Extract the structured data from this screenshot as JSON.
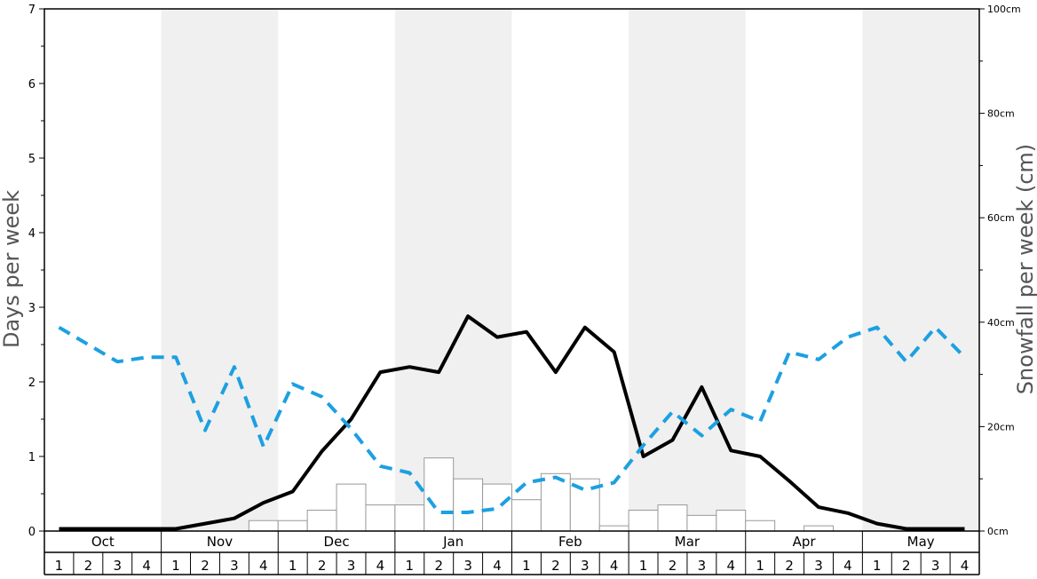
{
  "chart_data": {
    "type": "bar+line",
    "ylabel_left": "Days per week",
    "ylabel_right": "Snowfall per week (cm)",
    "ylim_left": [
      0,
      7
    ],
    "ylim_right": [
      0,
      100
    ],
    "left_ticks": [
      "0",
      "1",
      "2",
      "3",
      "4",
      "5",
      "6",
      "7"
    ],
    "right_ticks": [
      "0cm",
      "20cm",
      "40cm",
      "60cm",
      "80cm",
      "100cm"
    ],
    "months": [
      "Oct",
      "Nov",
      "Dec",
      "Jan",
      "Feb",
      "Mar",
      "Apr",
      "May"
    ],
    "week_labels": [
      "1",
      "2",
      "3",
      "4"
    ],
    "shaded_months": [
      "Nov",
      "Jan",
      "Mar",
      "May"
    ],
    "grid": false,
    "series": [
      {
        "kind": "bar",
        "axis": "right",
        "color": "#ffffff",
        "stroke": "#999999",
        "values": [
          0,
          0,
          0,
          0,
          0,
          0,
          0,
          2,
          2,
          4,
          9,
          5,
          5,
          14,
          10,
          9,
          6,
          11,
          10,
          1,
          4,
          5,
          3,
          4,
          2,
          0,
          1,
          0,
          0,
          0,
          0,
          0
        ]
      },
      {
        "kind": "line",
        "axis": "left",
        "color": "#000000",
        "style": "solid",
        "values": [
          0.03,
          0.03,
          0.03,
          0.03,
          0.03,
          0.1,
          0.17,
          0.38,
          0.53,
          1.07,
          1.5,
          2.13,
          2.2,
          2.13,
          2.88,
          2.6,
          2.67,
          2.13,
          2.73,
          2.4,
          1.0,
          1.22,
          1.93,
          1.08,
          1.0,
          0.67,
          0.32,
          0.24,
          0.1,
          0.03,
          0.03,
          0.03
        ]
      },
      {
        "kind": "line",
        "axis": "left",
        "color": "#1ca0e1",
        "style": "dashed",
        "values": [
          2.73,
          2.5,
          2.27,
          2.33,
          2.33,
          1.35,
          2.2,
          1.13,
          1.97,
          1.8,
          1.37,
          0.87,
          0.78,
          0.25,
          0.25,
          0.3,
          0.65,
          0.72,
          0.55,
          0.65,
          1.15,
          1.6,
          1.28,
          1.63,
          1.47,
          2.4,
          2.3,
          2.6,
          2.73,
          2.27,
          2.73,
          2.33
        ]
      }
    ]
  },
  "colors": {
    "shade": "#f0f0f0",
    "axis": "#000000",
    "label": "#555555",
    "bar_stroke": "#999999",
    "dark_line": "#000000",
    "blue_line": "#1ca0e1"
  }
}
